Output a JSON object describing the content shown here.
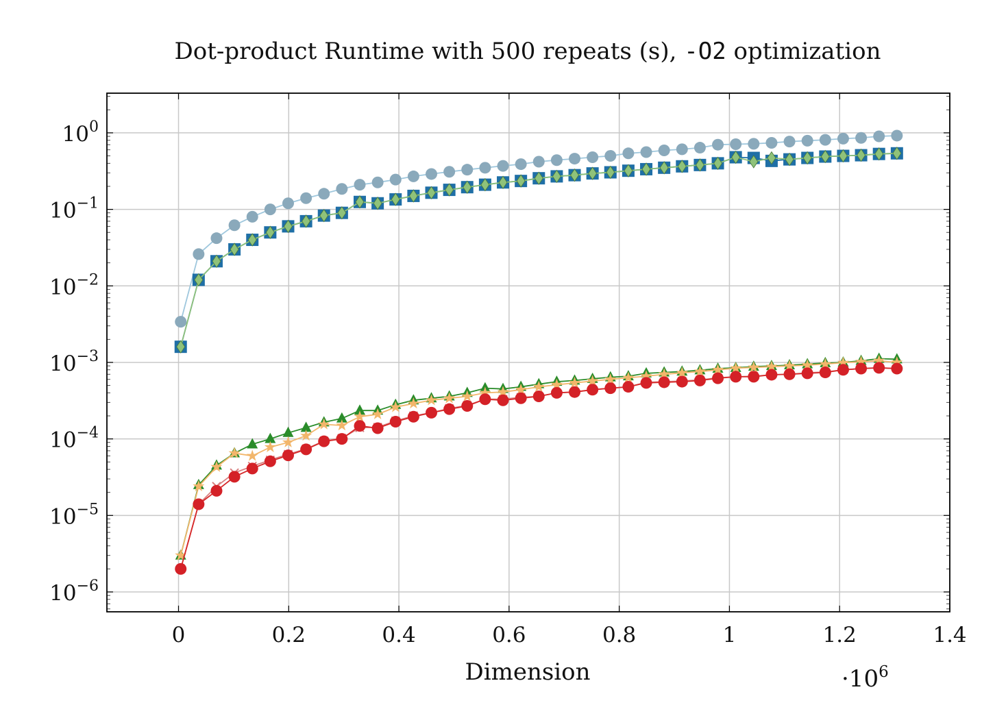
{
  "chart_data": {
    "type": "line",
    "title_prefix": "Dot-product Runtime with 500 repeats (s), ",
    "title_code": "-O2",
    "title_suffix": " optimization",
    "xlabel": "Dimension",
    "x_multiplier_base": "·10",
    "x_multiplier_exp": "6",
    "xlim": [
      -0.13,
      1.4
    ],
    "ylim": [
      5.5e-07,
      3.3
    ],
    "yscale": "log",
    "grid": true,
    "legend": "none",
    "x_ticks": [
      {
        "v": 0,
        "label": "0"
      },
      {
        "v": 0.2,
        "label": "0.2"
      },
      {
        "v": 0.4,
        "label": "0.4"
      },
      {
        "v": 0.6,
        "label": "0.6"
      },
      {
        "v": 0.8,
        "label": "0.8"
      },
      {
        "v": 1.0,
        "label": "1"
      },
      {
        "v": 1.2,
        "label": "1.2"
      },
      {
        "v": 1.4,
        "label": "1.4"
      }
    ],
    "y_ticks": [
      {
        "exp": 0,
        "base": "10",
        "sup": "0"
      },
      {
        "exp": -1,
        "base": "10",
        "sup": "−1"
      },
      {
        "exp": -2,
        "base": "10",
        "sup": "−2"
      },
      {
        "exp": -3,
        "base": "10",
        "sup": "−3"
      },
      {
        "exp": -4,
        "base": "10",
        "sup": "−4"
      },
      {
        "exp": -5,
        "base": "10",
        "sup": "−5"
      },
      {
        "exp": -6,
        "base": "10",
        "sup": "−6"
      }
    ],
    "x": [
      0.004,
      0.0365,
      0.069,
      0.1015,
      0.134,
      0.1665,
      0.199,
      0.2315,
      0.264,
      0.2965,
      0.329,
      0.3615,
      0.394,
      0.4265,
      0.459,
      0.4915,
      0.524,
      0.5565,
      0.589,
      0.6215,
      0.654,
      0.6865,
      0.719,
      0.7515,
      0.784,
      0.8165,
      0.849,
      0.8815,
      0.914,
      0.9465,
      0.979,
      1.0115,
      1.044,
      1.0765,
      1.109,
      1.1415,
      1.174,
      1.2065,
      1.239,
      1.2715,
      1.304
    ],
    "series": [
      {
        "color": "#9ec7dd",
        "marker_color": "#8aa9bb",
        "marker": "circle",
        "values": [
          0.0034,
          0.026,
          0.042,
          0.062,
          0.08,
          0.1,
          0.12,
          0.14,
          0.16,
          0.185,
          0.21,
          0.225,
          0.245,
          0.27,
          0.29,
          0.31,
          0.33,
          0.35,
          0.37,
          0.39,
          0.42,
          0.44,
          0.46,
          0.48,
          0.5,
          0.54,
          0.56,
          0.59,
          0.61,
          0.64,
          0.7,
          0.71,
          0.72,
          0.74,
          0.77,
          0.79,
          0.81,
          0.84,
          0.86,
          0.9,
          0.92
        ]
      },
      {
        "color": "#1f6fa6",
        "marker_color": "#1f6fa6",
        "marker": "square",
        "values": [
          0.0016,
          0.012,
          0.021,
          0.03,
          0.04,
          0.05,
          0.06,
          0.07,
          0.083,
          0.09,
          0.125,
          0.12,
          0.135,
          0.15,
          0.165,
          0.18,
          0.195,
          0.21,
          0.225,
          0.235,
          0.255,
          0.27,
          0.28,
          0.295,
          0.305,
          0.32,
          0.335,
          0.35,
          0.365,
          0.38,
          0.4,
          0.48,
          0.47,
          0.43,
          0.45,
          0.47,
          0.49,
          0.5,
          0.51,
          0.53,
          0.54
        ]
      },
      {
        "color": "#8fc27a",
        "marker_color": "#8fc27a",
        "marker": "diamond",
        "values": [
          0.0016,
          0.012,
          0.021,
          0.03,
          0.04,
          0.05,
          0.06,
          0.07,
          0.083,
          0.09,
          0.125,
          0.12,
          0.135,
          0.15,
          0.165,
          0.18,
          0.195,
          0.21,
          0.225,
          0.235,
          0.255,
          0.27,
          0.28,
          0.295,
          0.305,
          0.32,
          0.335,
          0.35,
          0.365,
          0.38,
          0.4,
          0.48,
          0.42,
          0.47,
          0.45,
          0.47,
          0.49,
          0.5,
          0.51,
          0.53,
          0.54
        ]
      },
      {
        "color": "#2a8c2a",
        "marker_color": "#2a8c2a",
        "marker": "triangle",
        "values": [
          3e-06,
          2.5e-05,
          4.5e-05,
          6.5e-05,
          8.5e-05,
          0.0001,
          0.00012,
          0.00014,
          0.000165,
          0.000185,
          0.000235,
          0.000235,
          0.00028,
          0.00032,
          0.00034,
          0.00036,
          0.0004,
          0.00046,
          0.00045,
          0.00048,
          0.00052,
          0.00056,
          0.00058,
          0.00061,
          0.00064,
          0.00066,
          0.00072,
          0.00074,
          0.00076,
          0.00079,
          0.00083,
          0.00085,
          0.00088,
          0.0009,
          0.00092,
          0.00095,
          0.00098,
          0.001,
          0.00105,
          0.00112,
          0.0011
        ]
      },
      {
        "color": "#f2b66b",
        "marker_color": "#f2b66b",
        "marker": "star",
        "values": [
          3e-06,
          2.4e-05,
          4.3e-05,
          6.5e-05,
          6e-05,
          7.8e-05,
          9e-05,
          0.00011,
          0.000155,
          0.00015,
          0.000195,
          0.00021,
          0.00026,
          0.00029,
          0.00032,
          0.00034,
          0.00036,
          0.0004,
          0.00041,
          0.00044,
          0.00048,
          0.00051,
          0.00054,
          0.00057,
          0.0006,
          0.00063,
          0.00066,
          0.0007,
          0.00073,
          0.00076,
          0.0008,
          0.00084,
          0.00086,
          0.00088,
          0.0009,
          0.00092,
          0.00095,
          0.00099,
          0.00102,
          0.00105,
          0.001
        ]
      },
      {
        "color": "#d98080",
        "marker_color": "#d98080",
        "marker": "cross",
        "values": [
          2e-06,
          1.4e-05,
          2.4e-05,
          3.6e-05,
          4.4e-05,
          5.3e-05,
          6.3e-05,
          7.4e-05,
          9.4e-05,
          0.000102,
          0.00014,
          0.000142,
          0.000172,
          0.0002,
          0.00022,
          0.00025,
          0.000275,
          0.00033,
          0.00033,
          0.00035,
          0.00036,
          0.0004,
          0.00041,
          0.00044,
          0.00046,
          0.00048,
          0.00055,
          0.00056,
          0.00057,
          0.00059,
          0.00063,
          0.00065,
          0.00066,
          0.00069,
          0.0007,
          0.00073,
          0.00075,
          0.0008,
          0.00083,
          0.00085,
          0.00083
        ]
      },
      {
        "color": "#d62728",
        "marker_color": "#d42127",
        "marker": "circle",
        "values": [
          2e-06,
          1.4e-05,
          2.1e-05,
          3.2e-05,
          4.1e-05,
          5.1e-05,
          6.1e-05,
          7.3e-05,
          9.3e-05,
          0.0001,
          0.000148,
          0.000138,
          0.000168,
          0.000195,
          0.00022,
          0.000245,
          0.00027,
          0.00033,
          0.00032,
          0.00034,
          0.00036,
          0.0004,
          0.00041,
          0.00044,
          0.00046,
          0.00048,
          0.00054,
          0.00055,
          0.00056,
          0.00058,
          0.00062,
          0.00065,
          0.00065,
          0.00069,
          0.0007,
          0.00072,
          0.00074,
          0.0008,
          0.00083,
          0.00085,
          0.00083
        ]
      }
    ]
  }
}
